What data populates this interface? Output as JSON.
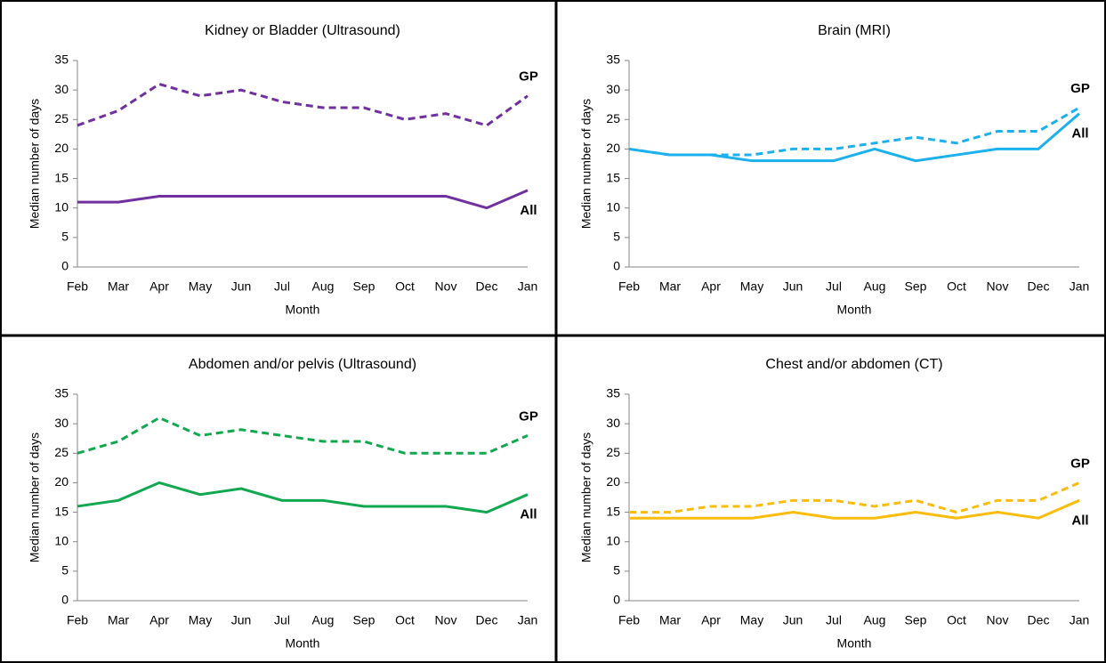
{
  "chart_data": [
    {
      "type": "line",
      "title": "Kidney or Bladder (Ultrasound)",
      "x_label": "Month",
      "y_label": "Median number of days",
      "categories": [
        "Feb",
        "Mar",
        "Apr",
        "May",
        "Jun",
        "Jul",
        "Aug",
        "Sep",
        "Oct",
        "Nov",
        "Dec",
        "Jan"
      ],
      "ylim": [
        0,
        35
      ],
      "yticks": [
        0,
        5,
        10,
        15,
        20,
        25,
        30,
        35
      ],
      "grid": false,
      "series": [
        {
          "name": "GP",
          "color": "#7030a0",
          "style": "dashed",
          "values": [
            24,
            26.5,
            31,
            29,
            30,
            28,
            27,
            27,
            25,
            26,
            24,
            29
          ]
        },
        {
          "name": "All",
          "color": "#7030a0",
          "style": "solid",
          "values": [
            11,
            11,
            12,
            12,
            12,
            12,
            12,
            12,
            12,
            12,
            10,
            13
          ]
        }
      ]
    },
    {
      "type": "line",
      "title": "Brain (MRI)",
      "x_label": "Month",
      "y_label": "Median number of days",
      "categories": [
        "Feb",
        "Mar",
        "Apr",
        "May",
        "Jun",
        "Jul",
        "Aug",
        "Sep",
        "Oct",
        "Nov",
        "Dec",
        "Jan"
      ],
      "ylim": [
        0,
        35
      ],
      "yticks": [
        0,
        5,
        10,
        15,
        20,
        25,
        30,
        35
      ],
      "grid": false,
      "series": [
        {
          "name": "GP",
          "color": "#1cb0ec",
          "style": "dashed",
          "values": [
            20,
            19,
            19,
            19,
            20,
            20,
            21,
            22,
            21,
            23,
            23,
            27
          ]
        },
        {
          "name": "All",
          "color": "#1cb0ec",
          "style": "solid",
          "values": [
            20,
            19,
            19,
            18,
            18,
            18,
            20,
            18,
            19,
            20,
            20,
            26
          ]
        }
      ]
    },
    {
      "type": "line",
      "title": "Abdomen and/or pelvis (Ultrasound)",
      "x_label": "Month",
      "y_label": "Median number of days",
      "categories": [
        "Feb",
        "Mar",
        "Apr",
        "May",
        "Jun",
        "Jul",
        "Aug",
        "Sep",
        "Oct",
        "Nov",
        "Dec",
        "Jan"
      ],
      "ylim": [
        0,
        35
      ],
      "yticks": [
        0,
        5,
        10,
        15,
        20,
        25,
        30,
        35
      ],
      "grid": false,
      "series": [
        {
          "name": "GP",
          "color": "#11a84f",
          "style": "dashed",
          "values": [
            25,
            27,
            31,
            28,
            29,
            28,
            27,
            27,
            25,
            25,
            25,
            28
          ]
        },
        {
          "name": "All",
          "color": "#11a84f",
          "style": "solid",
          "values": [
            16,
            17,
            20,
            18,
            19,
            17,
            17,
            16,
            16,
            16,
            15,
            18
          ]
        }
      ]
    },
    {
      "type": "line",
      "title": "Chest and/or abdomen (CT)",
      "x_label": "Month",
      "y_label": "Median number of days",
      "categories": [
        "Feb",
        "Mar",
        "Apr",
        "May",
        "Jun",
        "Jul",
        "Aug",
        "Sep",
        "Oct",
        "Nov",
        "Dec",
        "Jan"
      ],
      "ylim": [
        0,
        35
      ],
      "yticks": [
        0,
        5,
        10,
        15,
        20,
        25,
        30,
        35
      ],
      "grid": false,
      "series": [
        {
          "name": "GP",
          "color": "#fcbc0c",
          "style": "dashed",
          "values": [
            15,
            15,
            16,
            16,
            17,
            17,
            16,
            17,
            15,
            17,
            17,
            20
          ]
        },
        {
          "name": "All",
          "color": "#fcbc0c",
          "style": "solid",
          "values": [
            14,
            14,
            14,
            14,
            15,
            14,
            14,
            15,
            14,
            15,
            14,
            17
          ]
        }
      ]
    }
  ]
}
